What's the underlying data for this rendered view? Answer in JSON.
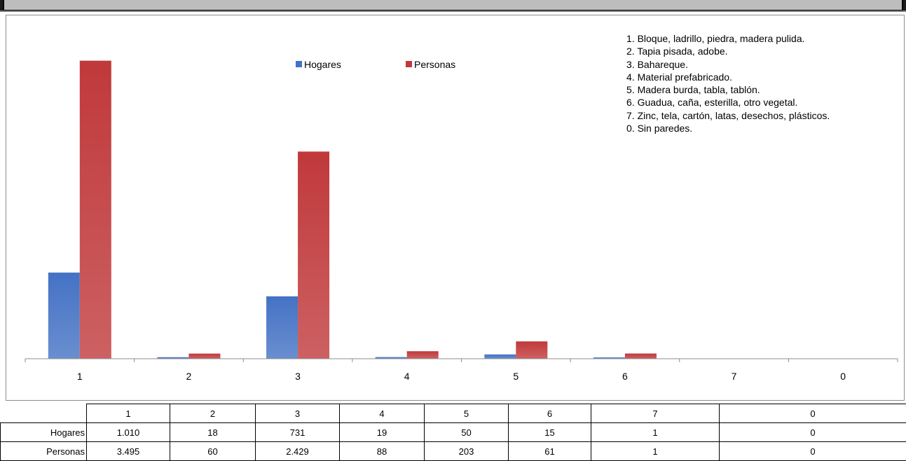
{
  "chart_data": {
    "type": "bar",
    "categories": [
      "1",
      "2",
      "3",
      "4",
      "5",
      "6",
      "7",
      "0"
    ],
    "series": [
      {
        "name": "Hogares",
        "values": [
          1010,
          18,
          731,
          19,
          50,
          15,
          1,
          0
        ],
        "color": "#4472c4"
      },
      {
        "name": "Personas",
        "values": [
          3495,
          60,
          2429,
          88,
          203,
          61,
          1,
          0
        ],
        "color": "#c0393b"
      }
    ],
    "title": "",
    "xlabel": "",
    "ylabel": "",
    "ylim": [
      0,
      3500
    ],
    "grid": false,
    "legend_position": "top-center",
    "notes": [
      "1. Bloque, ladrillo, piedra, madera pulida.",
      "2. Tapia pisada, adobe.",
      "3. Bahareque.",
      "4. Material prefabricado.",
      "5. Madera burda, tabla, tablón.",
      "6. Guadua, caña, esterilla, otro vegetal.",
      "7. Zinc, tela, cartón, latas, desechos, plásticos.",
      "0. Sin paredes."
    ]
  },
  "table": {
    "header": [
      "1",
      "2",
      "3",
      "4",
      "5",
      "6",
      "7",
      "0"
    ],
    "rows": [
      {
        "label": "Hogares",
        "values": [
          "1.010",
          "18",
          "731",
          "19",
          "50",
          "15",
          "1",
          "0"
        ]
      },
      {
        "label": "Personas",
        "values": [
          "3.495",
          "60",
          "2.429",
          "88",
          "203",
          "61",
          "1",
          "0"
        ]
      }
    ]
  }
}
